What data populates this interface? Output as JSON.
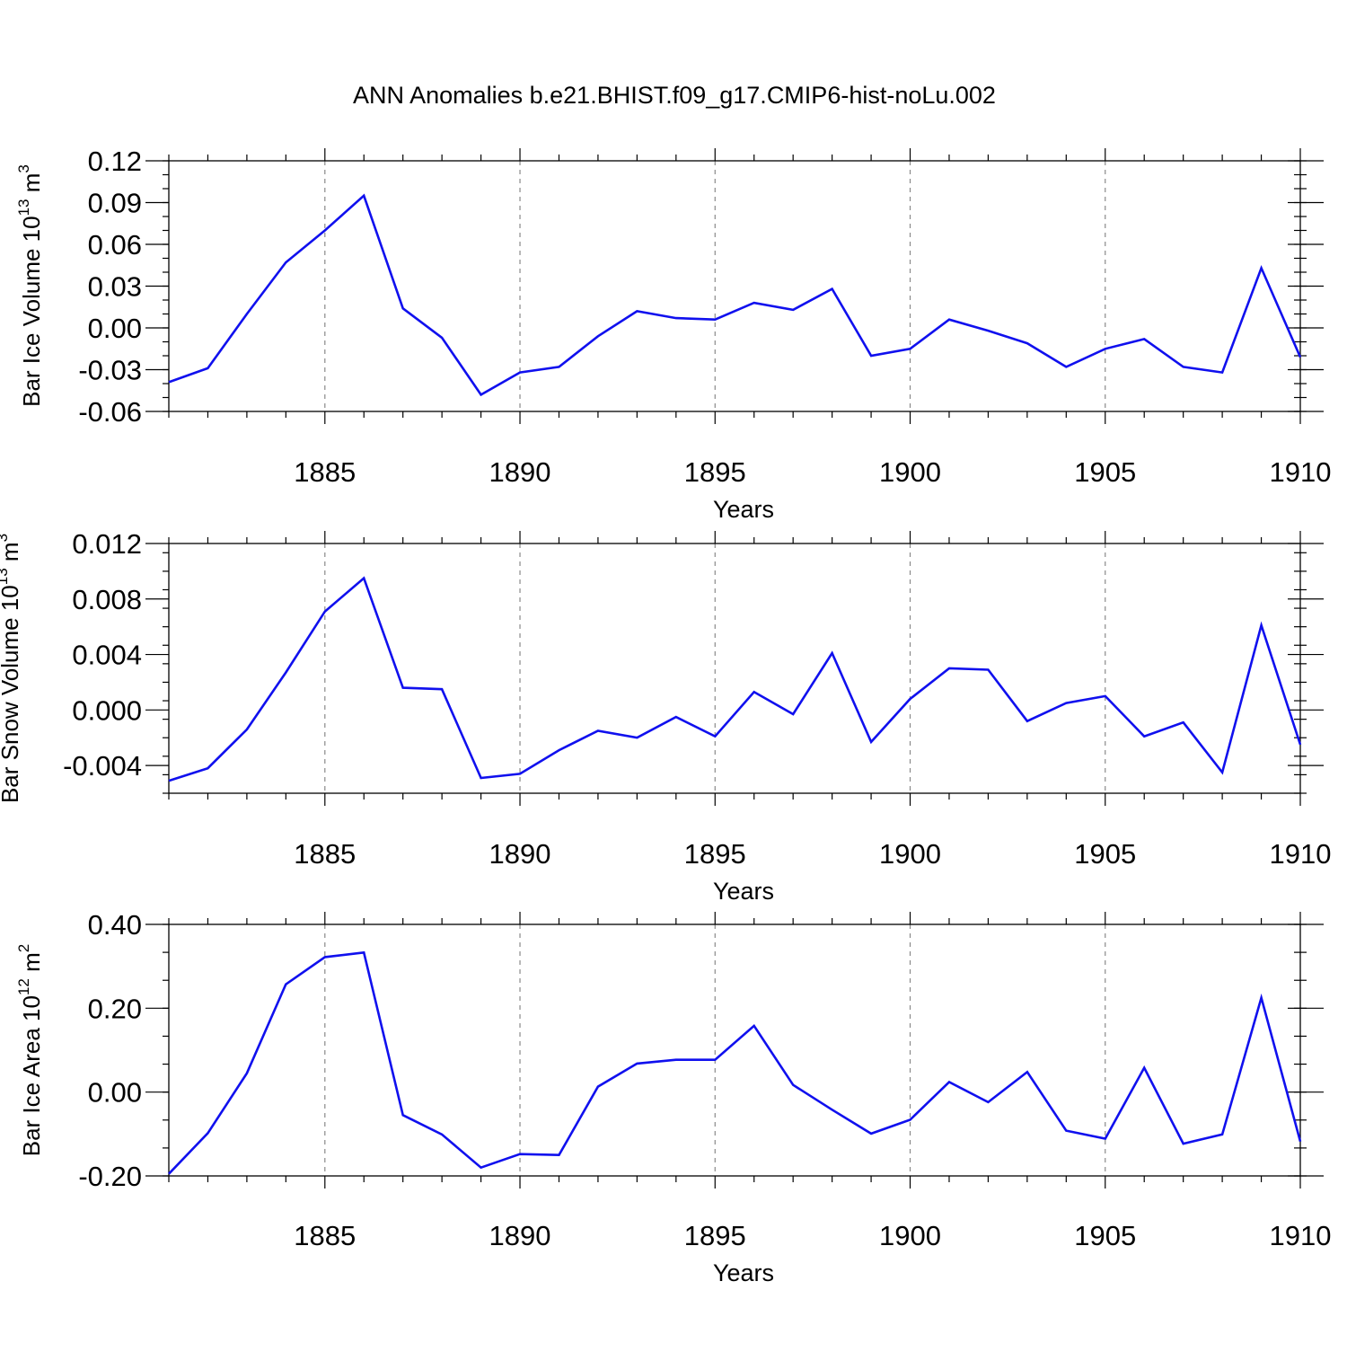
{
  "title": "ANN Anomalies b.e21.BHIST.f09_g17.CMIP6-hist-noLu.002",
  "colors": {
    "line": "#1010ee",
    "grid": "#8a8a8a",
    "axis": "#000000"
  },
  "chart_data": [
    {
      "type": "line",
      "ylabel": {
        "text": "Bar Ice Volume 10",
        "exp": "13",
        "unit": " m",
        "unit_exp": "3"
      },
      "xlabel": "Years",
      "xlim": [
        1881,
        1910
      ],
      "ylim": [
        -0.06,
        0.12
      ],
      "xticks": [
        1885,
        1890,
        1895,
        1900,
        1905,
        1910
      ],
      "yticks": [
        "-0.06",
        "-0.03",
        "0.00",
        "0.03",
        "0.06",
        "0.09",
        "0.12"
      ],
      "grid": "x-dashed",
      "x": [
        1881,
        1882,
        1883,
        1884,
        1885,
        1886,
        1887,
        1888,
        1889,
        1890,
        1891,
        1892,
        1893,
        1894,
        1895,
        1896,
        1897,
        1898,
        1899,
        1900,
        1901,
        1902,
        1903,
        1904,
        1905,
        1906,
        1907,
        1908,
        1909,
        1910
      ],
      "values": [
        -0.039,
        -0.029,
        0.01,
        0.047,
        0.07,
        0.095,
        0.014,
        -0.007,
        -0.048,
        -0.032,
        -0.028,
        -0.006,
        0.012,
        0.007,
        0.006,
        0.018,
        0.013,
        0.028,
        -0.02,
        -0.015,
        0.006,
        -0.002,
        -0.011,
        -0.028,
        -0.015,
        -0.008,
        -0.028,
        -0.032,
        0.043,
        -0.021
      ]
    },
    {
      "type": "line",
      "ylabel": {
        "text": "Bar Snow Volume 10",
        "exp": "13",
        "unit": " m",
        "unit_exp": "3"
      },
      "xlabel": "Years",
      "xlim": [
        1881,
        1910
      ],
      "ylim": [
        -0.006,
        0.012
      ],
      "xticks": [
        1885,
        1890,
        1895,
        1900,
        1905,
        1910
      ],
      "yticks": [
        "-0.004",
        "0.000",
        "0.004",
        "0.008",
        "0.012"
      ],
      "yticks_values": [
        -0.004,
        0.0,
        0.004,
        0.008,
        0.012
      ],
      "grid": "x-dashed",
      "x": [
        1881,
        1882,
        1883,
        1884,
        1885,
        1886,
        1887,
        1888,
        1889,
        1890,
        1891,
        1892,
        1893,
        1894,
        1895,
        1896,
        1897,
        1898,
        1899,
        1900,
        1901,
        1902,
        1903,
        1904,
        1905,
        1906,
        1907,
        1908,
        1909,
        1910
      ],
      "values": [
        -0.0051,
        -0.0042,
        -0.0014,
        0.0027,
        0.0071,
        0.0095,
        0.0016,
        0.0015,
        -0.0049,
        -0.0046,
        -0.0029,
        -0.0015,
        -0.002,
        -0.0005,
        -0.0019,
        0.0013,
        -0.0003,
        0.0041,
        -0.0023,
        0.0008,
        0.003,
        0.0029,
        -0.0008,
        0.0005,
        0.001,
        -0.0019,
        -0.0009,
        -0.0045,
        0.0061,
        -0.0025
      ]
    },
    {
      "type": "line",
      "ylabel": {
        "text": "Bar Ice Area 10",
        "exp": "12",
        "unit": " m",
        "unit_exp": "2"
      },
      "xlabel": "Years",
      "xlim": [
        1881,
        1910
      ],
      "ylim": [
        -0.2,
        0.4
      ],
      "xticks": [
        1885,
        1890,
        1895,
        1900,
        1905,
        1910
      ],
      "yticks": [
        "-0.20",
        "0.00",
        "0.20",
        "0.40"
      ],
      "yticks_values": [
        -0.2,
        0.0,
        0.2,
        0.4
      ],
      "grid": "x-dashed",
      "x": [
        1881,
        1882,
        1883,
        1884,
        1885,
        1886,
        1887,
        1888,
        1889,
        1890,
        1891,
        1892,
        1893,
        1894,
        1895,
        1896,
        1897,
        1898,
        1899,
        1900,
        1901,
        1902,
        1903,
        1904,
        1905,
        1906,
        1907,
        1908,
        1909,
        1910
      ],
      "values": [
        -0.195,
        -0.098,
        0.045,
        0.257,
        0.322,
        0.333,
        -0.055,
        -0.101,
        -0.18,
        -0.148,
        -0.15,
        0.013,
        0.068,
        0.077,
        0.077,
        0.158,
        0.017,
        -0.042,
        -0.099,
        -0.066,
        0.024,
        -0.024,
        0.048,
        -0.092,
        -0.111,
        0.058,
        -0.123,
        -0.101,
        0.225,
        -0.118
      ]
    }
  ]
}
